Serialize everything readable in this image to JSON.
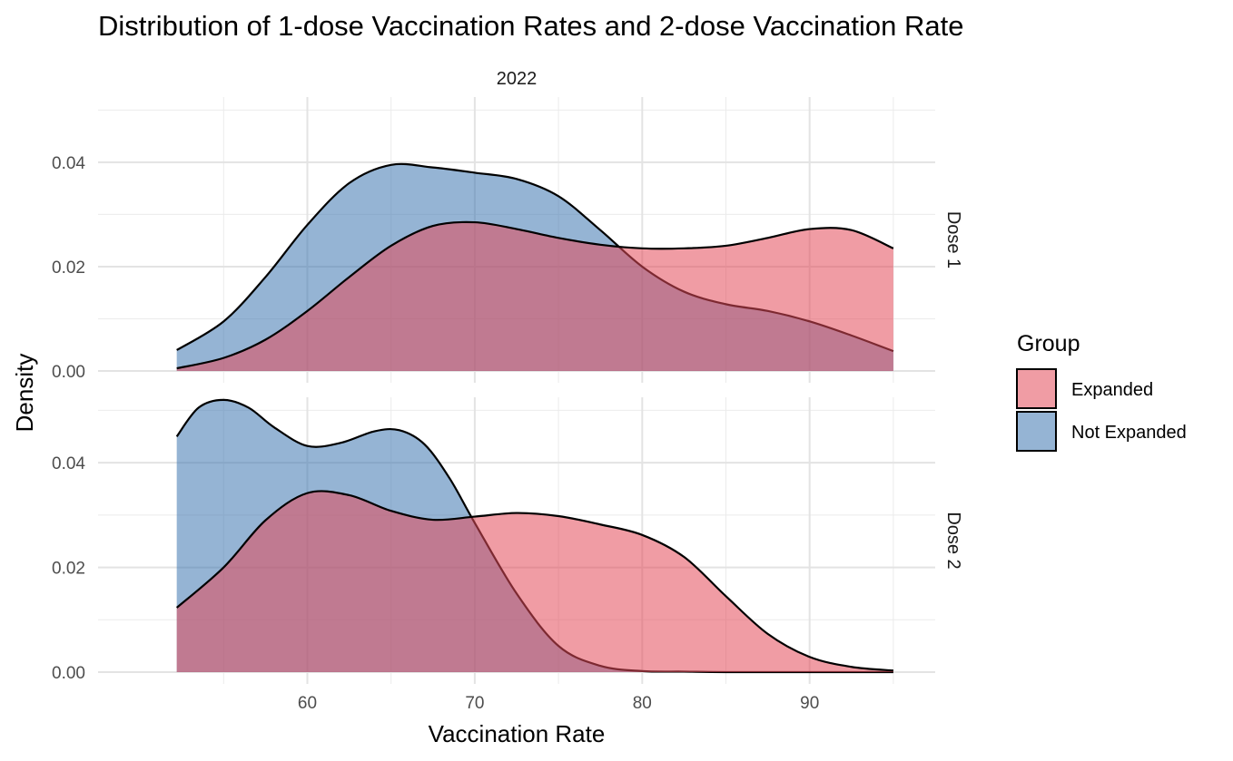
{
  "chart_data": {
    "type": "area",
    "title": "Distribution of 1-dose Vaccination Rates and 2-dose Vaccination Rate",
    "xlabel": "Vaccination Rate",
    "ylabel": "Density",
    "column_strip": "2022",
    "xlim": [
      47.5,
      97.5
    ],
    "x_ticks": [
      60,
      70,
      80,
      90
    ],
    "ylim": [
      0,
      0.0525
    ],
    "y_ticks": [
      0.0,
      0.02,
      0.04
    ],
    "y_tick_labels": [
      "0.00",
      "0.02",
      "0.04"
    ],
    "grid": true,
    "legend": {
      "title": "Group",
      "position": "right",
      "entries": [
        {
          "label": "Expanded",
          "color": "#E34A5A"
        },
        {
          "label": "Not Expanded",
          "color": "#3E77B0"
        }
      ]
    },
    "panels": [
      {
        "strip": "Dose 1",
        "series": [
          {
            "name": "Not Expanded",
            "color": "#3E77B0",
            "x": [
              52.2,
              55,
              57.5,
              60,
              62.5,
              65,
              67.5,
              70,
              72.5,
              75,
              77.5,
              80,
              82.5,
              85,
              87.5,
              90,
              92.5,
              95
            ],
            "y": [
              0.004,
              0.0095,
              0.018,
              0.028,
              0.036,
              0.0395,
              0.039,
              0.038,
              0.0368,
              0.0335,
              0.027,
              0.02,
              0.0152,
              0.0128,
              0.0115,
              0.0095,
              0.0068,
              0.0038
            ]
          },
          {
            "name": "Expanded",
            "color": "#E34A5A",
            "x": [
              52.2,
              55,
              57.5,
              60,
              62.5,
              65,
              67.5,
              70,
              72.5,
              75,
              77.5,
              80,
              82.5,
              85,
              87.5,
              90,
              92.5,
              95
            ],
            "y": [
              0.0005,
              0.0025,
              0.006,
              0.0115,
              0.018,
              0.024,
              0.0278,
              0.0285,
              0.0272,
              0.0255,
              0.0242,
              0.0235,
              0.0235,
              0.024,
              0.0255,
              0.0272,
              0.027,
              0.0235
            ]
          }
        ]
      },
      {
        "strip": "Dose 2",
        "series": [
          {
            "name": "Not Expanded",
            "color": "#3E77B0",
            "x": [
              52.2,
              53.5,
              55,
              56.5,
              58,
              60,
              62,
              64,
              65.5,
              67,
              68.5,
              70,
              72.5,
              75,
              77.5,
              80,
              82.5,
              85,
              90,
              95
            ],
            "y": [
              0.045,
              0.0505,
              0.052,
              0.0505,
              0.0468,
              0.0432,
              0.0438,
              0.046,
              0.0462,
              0.0435,
              0.037,
              0.0285,
              0.015,
              0.005,
              0.0012,
              0.0002,
              0.0001,
              0.0,
              0.0,
              0.0
            ]
          },
          {
            "name": "Expanded",
            "color": "#E34A5A",
            "x": [
              52.2,
              55,
              57.5,
              60,
              62.5,
              65,
              67.5,
              70,
              72.5,
              75,
              77.5,
              80,
              82.5,
              85,
              87.5,
              90,
              92.5,
              95
            ],
            "y": [
              0.0123,
              0.02,
              0.029,
              0.0342,
              0.0338,
              0.0308,
              0.0291,
              0.0297,
              0.0304,
              0.0298,
              0.0282,
              0.0262,
              0.022,
              0.0145,
              0.0073,
              0.0029,
              0.001,
              0.0003
            ]
          }
        ]
      }
    ]
  }
}
